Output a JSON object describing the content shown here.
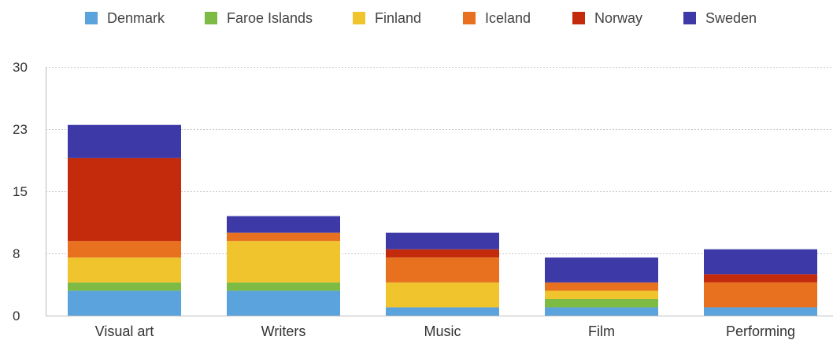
{
  "chart_data": {
    "type": "bar",
    "stacked": true,
    "title": "",
    "xlabel": "",
    "ylabel": "",
    "categories": [
      "Visual art",
      "Writers",
      "Music",
      "Film",
      "Performing"
    ],
    "ylim": [
      0,
      30
    ],
    "yticks": [
      "0",
      "8",
      "15",
      "23",
      "30"
    ],
    "ytick_values": [
      0,
      7.5,
      15,
      22.5,
      30
    ],
    "grid": true,
    "legend_position": "top",
    "series": [
      {
        "name": "Denmark",
        "color": "#5ba3dc",
        "values": [
          3,
          3,
          1,
          1,
          1
        ]
      },
      {
        "name": "Faroe Islands",
        "color": "#7dbb45",
        "values": [
          1,
          1,
          0,
          1,
          0
        ]
      },
      {
        "name": "Finland",
        "color": "#efc42d",
        "values": [
          3,
          5,
          3,
          1,
          0
        ]
      },
      {
        "name": "Iceland",
        "color": "#e7711f",
        "values": [
          2,
          1,
          3,
          1,
          3
        ]
      },
      {
        "name": "Norway",
        "color": "#c42a0c",
        "values": [
          10,
          0,
          1,
          0,
          1
        ]
      },
      {
        "name": "Sweden",
        "color": "#3d3aa8",
        "values": [
          4,
          2,
          2,
          3,
          3
        ]
      }
    ]
  }
}
